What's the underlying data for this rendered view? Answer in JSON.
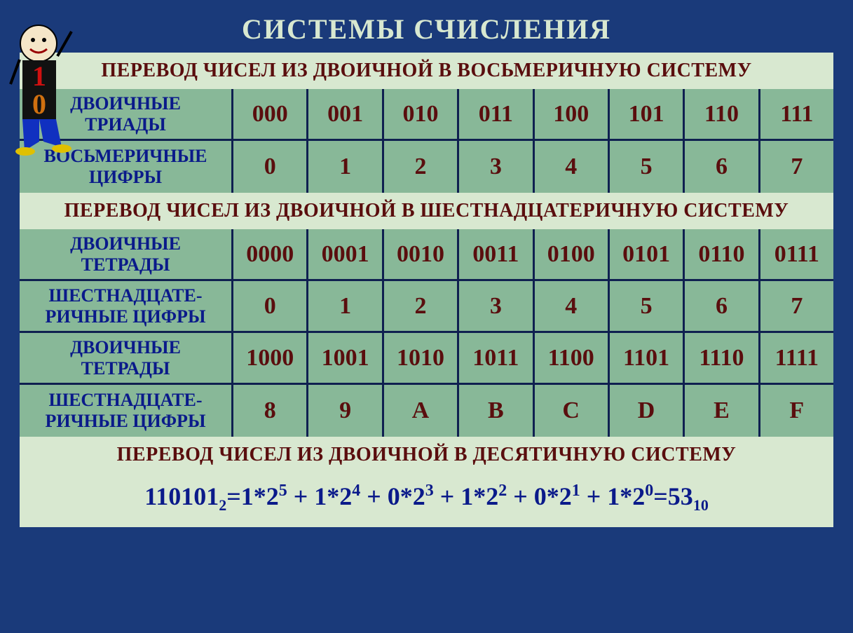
{
  "colors": {
    "page_bg": "#1a3a7a",
    "panel_bg": "#88b898",
    "header_bg": "#d8e8d0",
    "title_text": "#d8e8d0",
    "header_text": "#5a0e0e",
    "label_text": "#0a1a8a",
    "cell_text": "#5a0e0e",
    "rule": "#0f2050"
  },
  "title": "СИСТЕМЫ   СЧИСЛЕНИЯ",
  "section1": {
    "header": "ПЕРЕВОД ЧИСЕЛ ИЗ ДВОИЧНОЙ    В    ВОСЬМЕРИЧНУЮ  СИСТЕМУ",
    "rows": [
      {
        "label_lines": [
          "ДВОИЧНЫЕ",
          "ТРИАДЫ"
        ],
        "cells": [
          "000",
          "001",
          "010",
          "011",
          "100",
          "101",
          "110",
          "111"
        ]
      },
      {
        "label_lines": [
          "ВОСЬМЕРИЧНЫЕ",
          "ЦИФРЫ"
        ],
        "cells": [
          "0",
          "1",
          "2",
          "3",
          "4",
          "5",
          "6",
          "7"
        ]
      }
    ]
  },
  "section2": {
    "header": "ПЕРЕВОД ЧИСЕЛ ИЗ ДВОИЧНОЙ  В   ШЕСТНАДЦАТЕРИЧНУЮ СИСТЕМУ",
    "rows": [
      {
        "label_lines": [
          "ДВОИЧНЫЕ",
          "ТЕТРАДЫ"
        ],
        "cells": [
          "0000",
          "0001",
          "0010",
          "0011",
          "0100",
          "0101",
          "0110",
          "0111"
        ]
      },
      {
        "label_lines": [
          "ШЕСТНАДЦАТЕ-",
          "РИЧНЫЕ ЦИФРЫ"
        ],
        "cells": [
          "0",
          "1",
          "2",
          "3",
          "4",
          "5",
          "6",
          "7"
        ]
      },
      {
        "label_lines": [
          "ДВОИЧНЫЕ",
          "ТЕТРАДЫ"
        ],
        "cells": [
          "1000",
          "1001",
          "1010",
          "1011",
          "1100",
          "1101",
          "1110",
          "1111"
        ]
      },
      {
        "label_lines": [
          "ШЕСТНАДЦАТЕ-",
          "РИЧНЫЕ ЦИФРЫ"
        ],
        "cells": [
          "8",
          "9",
          "A",
          "B",
          "C",
          "D",
          "E",
          "F"
        ]
      }
    ]
  },
  "section3": {
    "header": "ПЕРЕВОД ЧИСЕЛ ИЗ  ДВОИЧНОЙ   В  ДЕСЯТИЧНУЮ  СИСТЕМУ",
    "formula": {
      "lhs_value": "110101",
      "lhs_base": "2",
      "terms": [
        {
          "coef": "1",
          "exp": "5"
        },
        {
          "coef": "1",
          "exp": "4"
        },
        {
          "coef": "0",
          "exp": "3"
        },
        {
          "coef": "1",
          "exp": "2"
        },
        {
          "coef": "0",
          "exp": "1"
        },
        {
          "coef": "1",
          "exp": "0"
        }
      ],
      "rhs_value": "53",
      "rhs_base": "10"
    }
  },
  "mascot": {
    "head_fill": "#f5e6c8",
    "body_fill": "#111111",
    "digit1": "1",
    "digit1_color": "#d01010",
    "digit0": "0",
    "digit0_color": "#d07010",
    "pants": "#1030c0",
    "shoes": "#e0c000"
  }
}
